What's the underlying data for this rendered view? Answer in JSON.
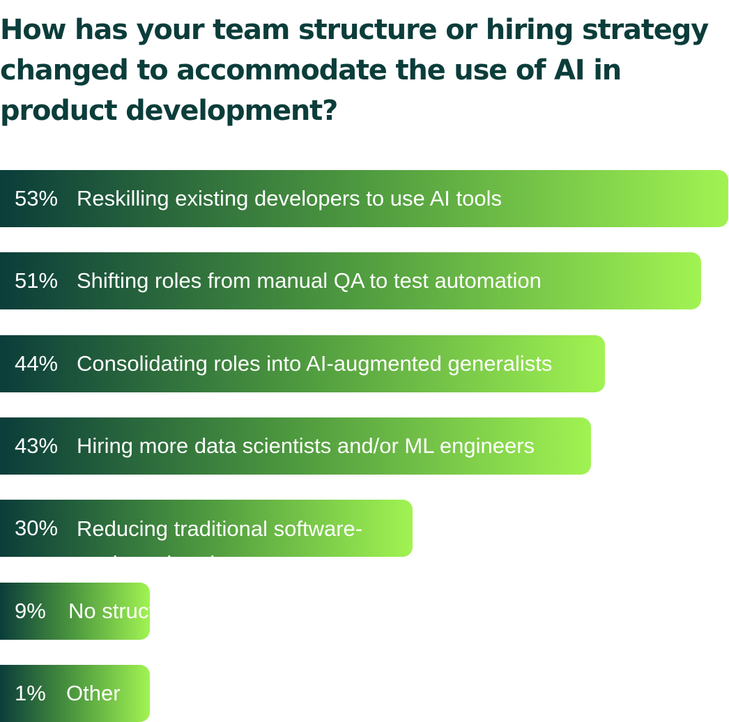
{
  "title": "How has your team structure or hiring strategy changed to accommodate the use of AI in product development?",
  "colors": {
    "title": "#0b3d3a",
    "bar_start": "#0b3d3a",
    "bar_mid": "#4e9a3f",
    "bar_end": "#a1f352",
    "label_text": "#ffffff"
  },
  "chart_data": {
    "type": "bar",
    "orientation": "horizontal",
    "title": "How has your team structure or hiring strategy changed to accommodate the use of AI in product development?",
    "xlabel": "",
    "ylabel": "",
    "xlim": [
      0,
      53
    ],
    "grid": false,
    "categories": [
      "Reskilling existing developers to use AI tools",
      "Shifting roles from manual QA to test automation",
      "Consolidating roles into AI-augmented generalists",
      "Hiring more data scientists and/or ML engineers",
      "Reducing traditional software-engineer headcount",
      "No structural changes",
      "Other"
    ],
    "values": [
      53,
      51,
      44,
      43,
      30,
      9,
      1
    ],
    "value_labels": [
      "53%",
      "51%",
      "44%",
      "43%",
      "30%",
      "9%",
      "1%"
    ]
  }
}
